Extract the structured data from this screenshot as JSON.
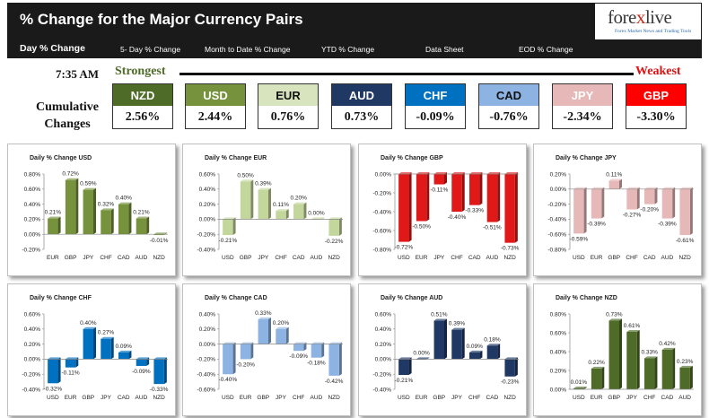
{
  "header": {
    "title": "% Change for the Major Currency Pairs"
  },
  "logo": {
    "brand_left": "fore",
    "brand_x": "x",
    "brand_right": "live",
    "tagline": "Forex Market News and Trading Tools"
  },
  "nav": {
    "items": [
      "Day % Change",
      "5- Day % Change",
      "Month to Date % Change",
      "YTD % Change",
      "Data Sheet",
      "EOD % Change"
    ]
  },
  "summary": {
    "time": "7:35 AM",
    "strongest_label": "Strongest",
    "weakest_label": "Weakest",
    "cumulative_label_1": "Cumulative",
    "cumulative_label_2": "Changes",
    "currencies": [
      {
        "code": "NZD",
        "value": "2.56%",
        "color": "#4e6b27",
        "text_color": "#ffffff"
      },
      {
        "code": "USD",
        "value": "2.44%",
        "color": "#76923c",
        "text_color": "#ffffff"
      },
      {
        "code": "EUR",
        "value": "0.76%",
        "color": "#d7e4bd",
        "text_color": "#111111"
      },
      {
        "code": "AUD",
        "value": "0.73%",
        "color": "#1f3864",
        "text_color": "#ffffff"
      },
      {
        "code": "CHF",
        "value": "-0.09%",
        "color": "#0070c0",
        "text_color": "#ffffff"
      },
      {
        "code": "CAD",
        "value": "-0.76%",
        "color": "#8db3e2",
        "text_color": "#111111"
      },
      {
        "code": "JPY",
        "value": "-2.34%",
        "color": "#e6b9b8",
        "text_color": "#ffffff"
      },
      {
        "code": "GBP",
        "value": "-3.30%",
        "color": "#ff0000",
        "text_color": "#ffffff"
      }
    ]
  },
  "chart_data": [
    {
      "type": "bar",
      "title": "Daily % Change USD",
      "categories": [
        "EUR",
        "GBP",
        "JPY",
        "CHF",
        "CAD",
        "AUD",
        "NZD"
      ],
      "values": [
        0.21,
        0.72,
        0.59,
        0.32,
        0.4,
        0.21,
        -0.01
      ],
      "labels": [
        "0.21%",
        "0.72%",
        "0.59%",
        "0.32%",
        "0.40%",
        "0.21%",
        "-0.01%"
      ],
      "ylim": [
        -0.2,
        0.8
      ],
      "yticks": [
        "-0.20%",
        "0.00%",
        "0.20%",
        "0.40%",
        "0.60%",
        "0.80%"
      ],
      "color": "#76923c"
    },
    {
      "type": "bar",
      "title": "Daily % Change EUR",
      "categories": [
        "USD",
        "GBP",
        "JPY",
        "CHF",
        "CAD",
        "AUD",
        "NZD"
      ],
      "values": [
        -0.21,
        0.5,
        0.39,
        0.11,
        0.2,
        0.0,
        -0.22
      ],
      "labels": [
        "-0.21%",
        "0.50%",
        "0.39%",
        "0.11%",
        "0.20%",
        "0.00%",
        "-0.22%"
      ],
      "ylim": [
        -0.4,
        0.6
      ],
      "yticks": [
        "-0.40%",
        "-0.20%",
        "0.00%",
        "0.20%",
        "0.40%",
        "0.60%"
      ],
      "color": "#c3d69b"
    },
    {
      "type": "bar",
      "title": "Daily % Change GBP",
      "categories": [
        "USD",
        "EUR",
        "JPY",
        "CHF",
        "CAD",
        "AUD",
        "NZD"
      ],
      "values": [
        -0.72,
        -0.5,
        -0.11,
        -0.4,
        -0.33,
        -0.51,
        -0.73
      ],
      "labels": [
        "-0.72%",
        "-0.50%",
        "-0.11%",
        "-0.40%",
        "-0.33%",
        "-0.51%",
        "-0.73%"
      ],
      "ylim": [
        -0.8,
        0.0
      ],
      "yticks": [
        "-0.80%",
        "-0.60%",
        "-0.40%",
        "-0.20%",
        "0.00%"
      ],
      "color": "#e01818"
    },
    {
      "type": "bar",
      "title": "Daily % Change JPY",
      "categories": [
        "USD",
        "EUR",
        "GBP",
        "CHF",
        "CAD",
        "AUD",
        "NZD"
      ],
      "values": [
        -0.59,
        -0.39,
        0.11,
        -0.27,
        -0.2,
        -0.39,
        -0.61
      ],
      "labels": [
        "-0.59%",
        "-0.39%",
        "0.11%",
        "-0.27%",
        "-0.20%",
        "-0.39%",
        "-0.61%"
      ],
      "ylim": [
        -0.8,
        0.2
      ],
      "yticks": [
        "-0.80%",
        "-0.60%",
        "-0.40%",
        "-0.20%",
        "0.00%",
        "0.20%"
      ],
      "color": "#e6b9b8"
    },
    {
      "type": "bar",
      "title": "Daily % Change CHF",
      "categories": [
        "USD",
        "EUR",
        "GBP",
        "JPY",
        "CAD",
        "AUD",
        "NZD"
      ],
      "values": [
        -0.32,
        -0.11,
        0.4,
        0.27,
        0.09,
        -0.09,
        -0.33
      ],
      "labels": [
        "-0.32%",
        "-0.11%",
        "0.40%",
        "0.27%",
        "0.09%",
        "-0.09%",
        "-0.33%"
      ],
      "ylim": [
        -0.4,
        0.6
      ],
      "yticks": [
        "-0.40%",
        "-0.20%",
        "0.00%",
        "0.20%",
        "0.40%",
        "0.60%"
      ],
      "color": "#0070c0"
    },
    {
      "type": "bar",
      "title": "Daily % Change CAD",
      "categories": [
        "USD",
        "EUR",
        "GBP",
        "JPY",
        "CHF",
        "AUD",
        "NZD"
      ],
      "values": [
        -0.4,
        -0.2,
        0.33,
        0.2,
        -0.09,
        -0.18,
        -0.42
      ],
      "labels": [
        "-0.40%",
        "-0.20%",
        "0.33%",
        "0.20%",
        "-0.09%",
        "-0.18%",
        "-0.42%"
      ],
      "ylim": [
        -0.6,
        0.4
      ],
      "yticks": [
        "-0.60%",
        "-0.40%",
        "-0.20%",
        "0.00%",
        "0.20%",
        "0.40%"
      ],
      "color": "#8db3e2"
    },
    {
      "type": "bar",
      "title": "Daily % Change AUD",
      "categories": [
        "USD",
        "EUR",
        "GBP",
        "JPY",
        "CHF",
        "CAD",
        "NZD"
      ],
      "values": [
        -0.21,
        0.0,
        0.51,
        0.39,
        0.09,
        0.18,
        -0.23
      ],
      "labels": [
        "-0.21%",
        "0.00%",
        "0.51%",
        "0.39%",
        "0.09%",
        "0.18%",
        "-0.23%"
      ],
      "ylim": [
        -0.4,
        0.6
      ],
      "yticks": [
        "-0.40%",
        "-0.20%",
        "0.00%",
        "0.20%",
        "0.40%",
        "0.60%"
      ],
      "color": "#1f3864"
    },
    {
      "type": "bar",
      "title": "Daily % Change NZD",
      "categories": [
        "USD",
        "EUR",
        "GBP",
        "JPY",
        "CHF",
        "CAD",
        "AUD"
      ],
      "values": [
        0.01,
        0.22,
        0.73,
        0.61,
        0.33,
        0.42,
        0.23
      ],
      "labels": [
        "0.01%",
        "0.22%",
        "0.73%",
        "0.61%",
        "0.33%",
        "0.42%",
        "0.23%"
      ],
      "ylim": [
        0.0,
        0.8
      ],
      "yticks": [
        "0.00%",
        "0.20%",
        "0.40%",
        "0.60%",
        "0.80%"
      ],
      "color": "#4e6b27"
    }
  ]
}
